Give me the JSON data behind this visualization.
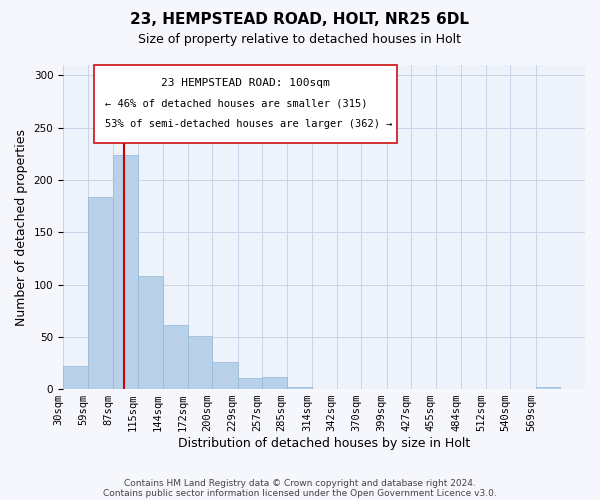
{
  "title": "23, HEMPSTEAD ROAD, HOLT, NR25 6DL",
  "subtitle": "Size of property relative to detached houses in Holt",
  "xlabel": "Distribution of detached houses by size in Holt",
  "ylabel": "Number of detached properties",
  "bar_color": "#b8d0e8",
  "bar_edge_color": "#90b8d8",
  "vline_color": "#cc0000",
  "vline_x": 100,
  "grid_color": "#c8d4e8",
  "background_color": "#eef2fa",
  "fig_background": "#f5f7fd",
  "bins": [
    30,
    59,
    87,
    115,
    144,
    172,
    200,
    229,
    257,
    285,
    314,
    342,
    370,
    399,
    427,
    455,
    484,
    512,
    540,
    569,
    597
  ],
  "bar_heights": [
    22,
    184,
    224,
    108,
    61,
    51,
    26,
    11,
    12,
    2,
    0,
    0,
    0,
    0,
    0,
    0,
    0,
    0,
    0,
    2
  ],
  "ylim": [
    0,
    310
  ],
  "yticks": [
    0,
    50,
    100,
    150,
    200,
    250,
    300
  ],
  "annotation_title": "23 HEMPSTEAD ROAD: 100sqm",
  "annotation_line1": "← 46% of detached houses are smaller (315)",
  "annotation_line2": "53% of semi-detached houses are larger (362) →",
  "footer_line1": "Contains HM Land Registry data © Crown copyright and database right 2024.",
  "footer_line2": "Contains public sector information licensed under the Open Government Licence v3.0.",
  "title_fontsize": 11,
  "subtitle_fontsize": 9,
  "axis_label_fontsize": 9,
  "tick_fontsize": 7.5,
  "annotation_fontsize": 8,
  "footer_fontsize": 6.5
}
